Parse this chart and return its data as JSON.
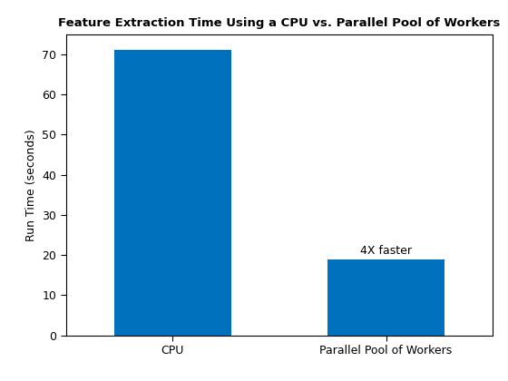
{
  "categories": [
    "CPU",
    "Parallel Pool of Workers"
  ],
  "values": [
    71,
    19
  ],
  "bar_color": "#0072BD",
  "title": "Feature Extraction Time Using a CPU vs. Parallel Pool of Workers",
  "ylabel": "Run Time (seconds)",
  "ylim": [
    0,
    75
  ],
  "yticks": [
    0,
    10,
    20,
    30,
    40,
    50,
    60,
    70
  ],
  "annotation_text": "4X faster",
  "annotation_bar_index": 1,
  "title_fontsize": 9.5,
  "label_fontsize": 9,
  "tick_fontsize": 9,
  "annotation_fontsize": 9,
  "bar_width": 0.55
}
